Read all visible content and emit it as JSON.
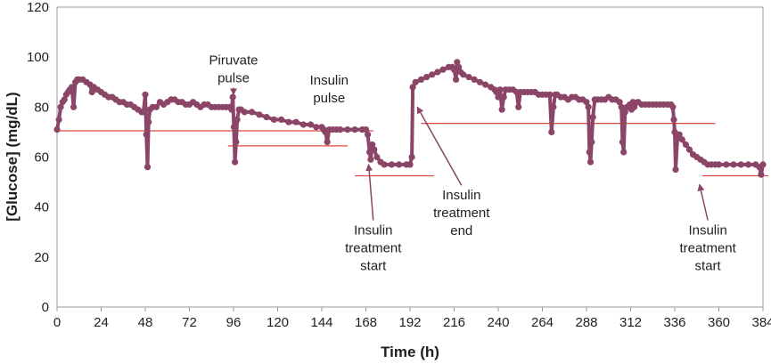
{
  "chart_data": {
    "type": "line",
    "title": "",
    "xlabel": "Time (h)",
    "ylabel": "[Glucose] (mg/dL)",
    "xlim": [
      0,
      384
    ],
    "ylim": [
      0,
      120
    ],
    "x_ticks": [
      0,
      24,
      48,
      72,
      96,
      120,
      144,
      168,
      192,
      216,
      240,
      264,
      288,
      312,
      336,
      360,
      384
    ],
    "y_ticks": [
      0,
      20,
      40,
      60,
      80,
      100,
      120
    ],
    "grid": false,
    "colors": {
      "series": "#8b4567",
      "threshold": "#e0473a",
      "arrow": "#8b4567",
      "axis": "#9a9a9a"
    },
    "series": [
      {
        "name": "Glucose",
        "points": [
          [
            0,
            71
          ],
          [
            1,
            75
          ],
          [
            2,
            80
          ],
          [
            3,
            82
          ],
          [
            4,
            83
          ],
          [
            5,
            85
          ],
          [
            6,
            86
          ],
          [
            7,
            87
          ],
          [
            8,
            88
          ],
          [
            9,
            80
          ],
          [
            10,
            90
          ],
          [
            11,
            91
          ],
          [
            12,
            91
          ],
          [
            14,
            91
          ],
          [
            16,
            90
          ],
          [
            18,
            89
          ],
          [
            19,
            86
          ],
          [
            20,
            88
          ],
          [
            22,
            87
          ],
          [
            24,
            86
          ],
          [
            26,
            85
          ],
          [
            28,
            84
          ],
          [
            30,
            84
          ],
          [
            32,
            83
          ],
          [
            34,
            82
          ],
          [
            36,
            82
          ],
          [
            38,
            81
          ],
          [
            40,
            81
          ],
          [
            42,
            80
          ],
          [
            44,
            79
          ],
          [
            46,
            78
          ],
          [
            47,
            78
          ],
          [
            48,
            85
          ],
          [
            48.6,
            69
          ],
          [
            49.2,
            56
          ],
          [
            49.8,
            74
          ],
          [
            50.5,
            79
          ],
          [
            52,
            80
          ],
          [
            54,
            80
          ],
          [
            56,
            82
          ],
          [
            58,
            81
          ],
          [
            60,
            82
          ],
          [
            62,
            83
          ],
          [
            64,
            83
          ],
          [
            66,
            82
          ],
          [
            68,
            82
          ],
          [
            70,
            81
          ],
          [
            72,
            81
          ],
          [
            74,
            82
          ],
          [
            76,
            81
          ],
          [
            78,
            80
          ],
          [
            80,
            81
          ],
          [
            82,
            81
          ],
          [
            84,
            80
          ],
          [
            86,
            80
          ],
          [
            88,
            80
          ],
          [
            90,
            80
          ],
          [
            92,
            80
          ],
          [
            94,
            80
          ],
          [
            95,
            79
          ],
          [
            95.6,
            84
          ],
          [
            96.2,
            72
          ],
          [
            96.8,
            58
          ],
          [
            97.4,
            66
          ],
          [
            98,
            75
          ],
          [
            99,
            79
          ],
          [
            100,
            79
          ],
          [
            102,
            78
          ],
          [
            106,
            78
          ],
          [
            110,
            77
          ],
          [
            114,
            76
          ],
          [
            118,
            75
          ],
          [
            122,
            75
          ],
          [
            126,
            74
          ],
          [
            130,
            74
          ],
          [
            134,
            73
          ],
          [
            138,
            73
          ],
          [
            141,
            72
          ],
          [
            144,
            72
          ],
          [
            145,
            71
          ],
          [
            146,
            70
          ],
          [
            147,
            66
          ],
          [
            148,
            71
          ],
          [
            150,
            71
          ],
          [
            152,
            71
          ],
          [
            154,
            71
          ],
          [
            158,
            71
          ],
          [
            162,
            71
          ],
          [
            166,
            71
          ],
          [
            168,
            71
          ],
          [
            169,
            69
          ],
          [
            170,
            62
          ],
          [
            170.6,
            59
          ],
          [
            171.5,
            65
          ],
          [
            172.5,
            63
          ],
          [
            174,
            60
          ],
          [
            176,
            58
          ],
          [
            178,
            57
          ],
          [
            182,
            57
          ],
          [
            186,
            57
          ],
          [
            190,
            57
          ],
          [
            192,
            57
          ],
          [
            193,
            60
          ],
          [
            193.5,
            88
          ],
          [
            195,
            90
          ],
          [
            198,
            91
          ],
          [
            201,
            92
          ],
          [
            204,
            93
          ],
          [
            207,
            94
          ],
          [
            210,
            95
          ],
          [
            213,
            96
          ],
          [
            215,
            96
          ],
          [
            216,
            95
          ],
          [
            217,
            91
          ],
          [
            217.6,
            98
          ],
          [
            218.5,
            96
          ],
          [
            219.5,
            94
          ],
          [
            221,
            93
          ],
          [
            224,
            92
          ],
          [
            227,
            91
          ],
          [
            230,
            90
          ],
          [
            233,
            89
          ],
          [
            236,
            88
          ],
          [
            238,
            87
          ],
          [
            239,
            86
          ],
          [
            240,
            84
          ],
          [
            241,
            87
          ],
          [
            242,
            79
          ],
          [
            243,
            84
          ],
          [
            244,
            87
          ],
          [
            246,
            87
          ],
          [
            248,
            87
          ],
          [
            250,
            86
          ],
          [
            251,
            80
          ],
          [
            252,
            86
          ],
          [
            254,
            86
          ],
          [
            256,
            86
          ],
          [
            258,
            86
          ],
          [
            260,
            86
          ],
          [
            262,
            85
          ],
          [
            264,
            85
          ],
          [
            266,
            85
          ],
          [
            268,
            85
          ],
          [
            269,
            70
          ],
          [
            270,
            80
          ],
          [
            271,
            85
          ],
          [
            272,
            85
          ],
          [
            274,
            84
          ],
          [
            276,
            84
          ],
          [
            278,
            83
          ],
          [
            280,
            84
          ],
          [
            282,
            84
          ],
          [
            284,
            83
          ],
          [
            286,
            83
          ],
          [
            288,
            82
          ],
          [
            289,
            80
          ],
          [
            289.6,
            62
          ],
          [
            290.2,
            58
          ],
          [
            290.8,
            66
          ],
          [
            291.5,
            76
          ],
          [
            292.5,
            83
          ],
          [
            294,
            83
          ],
          [
            296,
            83
          ],
          [
            298,
            83
          ],
          [
            300,
            84
          ],
          [
            302,
            83
          ],
          [
            304,
            83
          ],
          [
            306,
            82
          ],
          [
            307,
            80
          ],
          [
            307.6,
            66
          ],
          [
            308.2,
            62
          ],
          [
            309,
            78
          ],
          [
            310,
            80
          ],
          [
            311.5,
            81
          ],
          [
            312.5,
            79
          ],
          [
            313.3,
            82
          ],
          [
            314,
            80
          ],
          [
            316,
            82
          ],
          [
            318,
            81
          ],
          [
            320,
            81
          ],
          [
            322,
            81
          ],
          [
            324,
            81
          ],
          [
            326,
            81
          ],
          [
            328,
            81
          ],
          [
            330,
            81
          ],
          [
            332,
            81
          ],
          [
            334,
            81
          ],
          [
            335,
            80
          ],
          [
            335.5,
            75
          ],
          [
            336,
            70
          ],
          [
            336.5,
            55
          ],
          [
            337.5,
            68
          ],
          [
            338.5,
            69
          ],
          [
            340,
            67
          ],
          [
            342,
            65
          ],
          [
            344,
            63
          ],
          [
            346,
            61
          ],
          [
            348,
            60
          ],
          [
            350,
            59
          ],
          [
            352,
            58
          ],
          [
            354,
            57
          ],
          [
            356,
            57
          ],
          [
            358,
            57
          ],
          [
            360,
            57
          ],
          [
            364,
            57
          ],
          [
            368,
            57
          ],
          [
            372,
            57
          ],
          [
            376,
            57
          ],
          [
            380,
            57
          ],
          [
            382,
            56
          ],
          [
            383,
            53
          ],
          [
            384,
            57
          ]
        ]
      }
    ],
    "thresholds": [
      {
        "x_start": 0,
        "x_end": 157,
        "y": 70.5
      },
      {
        "x_start": 93,
        "x_end": 158,
        "y": 64.5
      },
      {
        "x_start": 158,
        "x_end": 172,
        "y": 70.5
      },
      {
        "x_start": 162,
        "x_end": 205,
        "y": 52.5
      },
      {
        "x_start": 198,
        "x_end": 358,
        "y": 73.5
      },
      {
        "x_start": 351,
        "x_end": 387,
        "y": 52.5
      }
    ],
    "annotations": [
      {
        "lines": [
          "Piruvate",
          "pulse"
        ],
        "x": 96,
        "y": 97,
        "arrow_to": [
          96,
          85
        ]
      },
      {
        "lines": [
          "Insulin",
          "pulse"
        ],
        "x": 148,
        "y": 89,
        "arrow_to": null
      },
      {
        "lines": [
          "Insulin",
          "treatment",
          "start"
        ],
        "x": 172,
        "y": 29,
        "arrow_to": [
          169.5,
          57
        ]
      },
      {
        "lines": [
          "Insulin",
          "treatment",
          "end"
        ],
        "x": 220,
        "y": 43,
        "arrow_to": [
          196,
          80
        ]
      },
      {
        "lines": [
          "Insulin",
          "treatment",
          "start"
        ],
        "x": 354,
        "y": 29,
        "arrow_to": [
          349.5,
          49
        ]
      }
    ]
  }
}
